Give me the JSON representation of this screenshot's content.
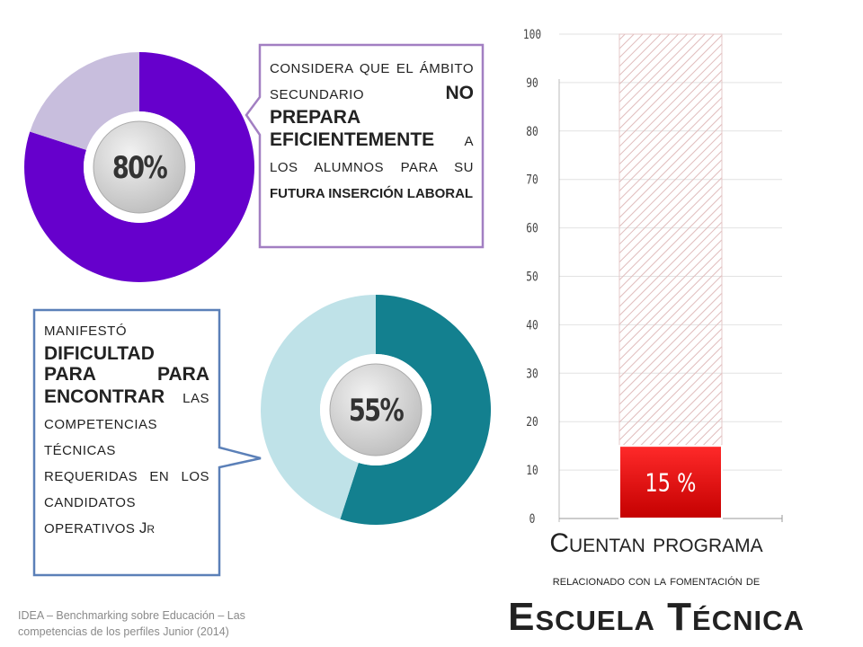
{
  "chart_data": [
    {
      "type": "donut",
      "values": [
        80,
        20
      ],
      "value_labels": [
        "80%",
        null
      ],
      "colors": [
        "#6600cc",
        "#c8bedd"
      ]
    },
    {
      "type": "donut",
      "values": [
        55,
        45
      ],
      "value_labels": [
        "55%",
        null
      ],
      "colors": [
        "#13808f",
        "#bfe2e8"
      ]
    },
    {
      "type": "bar",
      "categories": [
        null
      ],
      "series": [
        {
          "values": [
            100
          ],
          "color": "#e6c8c8",
          "pattern": "hatch"
        },
        {
          "values": [
            15
          ],
          "value_labels": [
            "15 %"
          ],
          "color": "#e00000"
        }
      ],
      "ylim": [
        0,
        100
      ],
      "yticks": [
        0,
        10,
        20,
        30,
        40,
        50,
        60,
        70,
        80,
        90,
        100
      ],
      "grid": true
    }
  ],
  "callouts": [
    {
      "parts": [
        {
          "text": "CONSIDERA QUE EL ÁMBITO SECUNDARIO",
          "style": "small"
        },
        {
          "text": "NO PREPARA EFICIENTEMENTE",
          "style": "big"
        },
        {
          "text": "A LOS ALUMNOS PARA SU",
          "style": "small"
        },
        {
          "text": "FUTURA INSERCIÓN LABORAL",
          "style": "bold"
        }
      ]
    },
    {
      "parts": [
        {
          "text": "MANIFESTÓ",
          "style": "small"
        },
        {
          "text": "DIFICULTAD PARA PARA ENCONTRAR",
          "style": "big"
        },
        {
          "text": "LAS COMPETENCIAS TÉCNICAS REQUERIDAS EN LOS CANDIDATOS OPERATIVOS",
          "style": "small"
        },
        {
          "text": "Jr",
          "style": "caps"
        }
      ]
    }
  ],
  "caption": {
    "line1": "Cuentan programa",
    "line2": "relacionado  con la fomentación de",
    "line3": "Escuela Técnica"
  },
  "source": "IDEA – Benchmarking sobre Educación – Las competencias de los perfiles Junior (2014)"
}
